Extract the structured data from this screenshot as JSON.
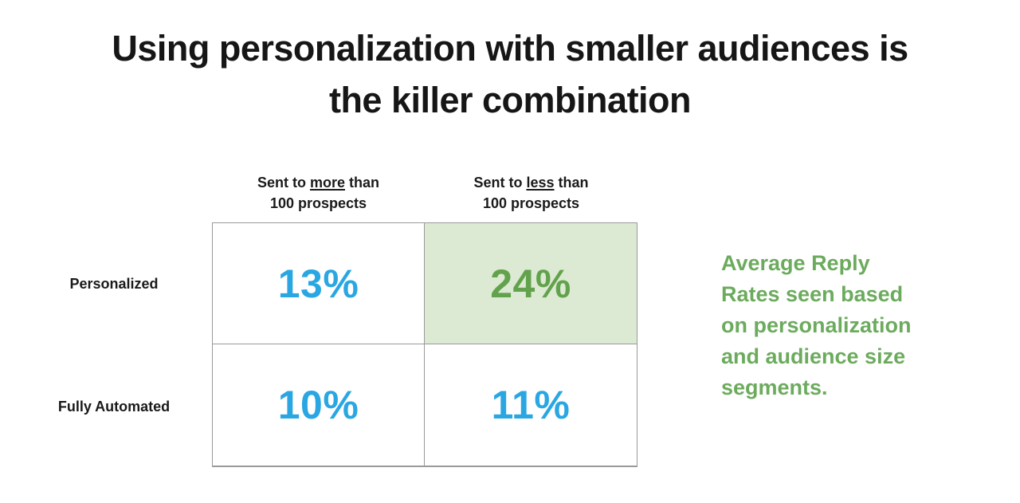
{
  "title": {
    "line1": "Using personalization with smaller audiences is",
    "line2": "the killer combination"
  },
  "chart_data": {
    "type": "table",
    "title": "Using personalization with smaller audiences is the killer combination",
    "columns": [
      "Sent to more than 100 prospects",
      "Sent to less than 100 prospects"
    ],
    "rows": [
      "Personalized",
      "Fully Automated"
    ],
    "values": [
      [
        13,
        24
      ],
      [
        10,
        11
      ]
    ],
    "unit": "%",
    "highlight_cell": {
      "row": "Personalized",
      "column": "Sent to less than 100 prospects",
      "value": 24
    },
    "annotation": "Average Reply Rates seen based on personalization and audience size segments."
  },
  "matrix": {
    "col_headers": [
      {
        "prefix": "Sent to ",
        "underlined": "more",
        "suffix": " than",
        "line2": "100 prospects"
      },
      {
        "prefix": "Sent to ",
        "underlined": "less",
        "suffix": " than",
        "line2": "100 prospects"
      }
    ],
    "row_labels": [
      "Personalized",
      "Fully Automated"
    ],
    "cells": [
      {
        "display": "13%"
      },
      {
        "display": "24%"
      },
      {
        "display": "10%"
      },
      {
        "display": "11%"
      }
    ]
  },
  "aside": {
    "lines": [
      "Average Reply",
      "Rates seen based",
      "on personalization",
      "and audience size",
      "segments."
    ]
  },
  "colors": {
    "blue": "#2aa7e2",
    "green_number": "#63a24c",
    "green_text": "#6cab5d",
    "highlight_bg": "#dcead3",
    "border": "#9a9a9a",
    "ink": "#161616"
  }
}
